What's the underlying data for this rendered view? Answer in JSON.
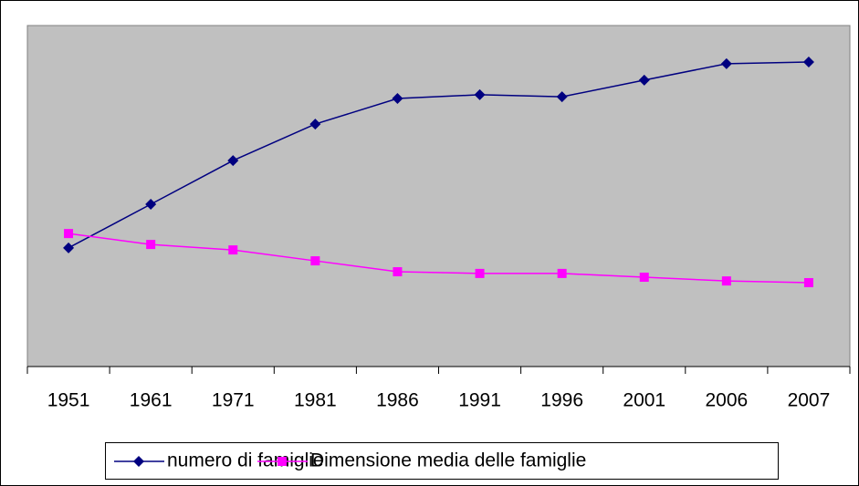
{
  "chart_data": {
    "type": "line",
    "categories": [
      "1951",
      "1961",
      "1971",
      "1981",
      "1986",
      "1991",
      "1996",
      "2001",
      "2006",
      "2007"
    ],
    "series": [
      {
        "name": "numero di famiglie",
        "color": "#000080",
        "marker": "diamond",
        "values": [
          34.8,
          47.6,
          60.4,
          71.1,
          78.6,
          79.7,
          79.1,
          84.0,
          88.8,
          89.3
        ]
      },
      {
        "name": "Dimensione media delle famiglie",
        "color": "#ff00ff",
        "marker": "square",
        "values": [
          39.0,
          35.8,
          34.2,
          31.0,
          27.8,
          27.3,
          27.3,
          26.2,
          25.1,
          24.6
        ]
      }
    ],
    "ylim": [
      0,
      100
    ],
    "legend": "bottom"
  }
}
